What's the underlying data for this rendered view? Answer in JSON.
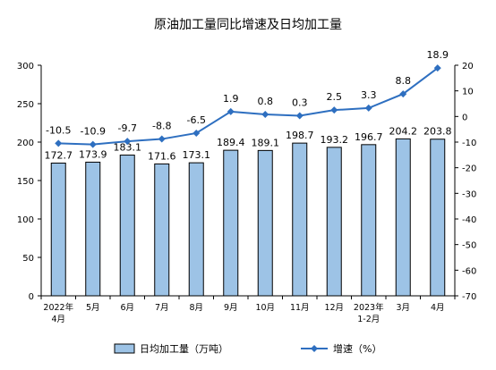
{
  "chart_data": {
    "title": "原油加工量同比增速及日均加工量",
    "categories": [
      [
        "2022年",
        "4月"
      ],
      [
        "5月"
      ],
      [
        "6月"
      ],
      [
        "7月"
      ],
      [
        "8月"
      ],
      [
        "9月"
      ],
      [
        "10月"
      ],
      [
        "11月"
      ],
      [
        "12月"
      ],
      [
        "2023年",
        "1-2月"
      ],
      [
        "3月"
      ],
      [
        "4月"
      ]
    ],
    "left_axis": {
      "min": 0,
      "max": 300,
      "ticks": [
        0,
        50,
        100,
        150,
        200,
        250,
        300
      ]
    },
    "right_axis": {
      "min": -70,
      "max": 20,
      "ticks": [
        20,
        10,
        0,
        -10,
        -20,
        -30,
        -40,
        -50,
        -60,
        -70
      ]
    },
    "series": [
      {
        "name": "日均加工量（万吨）",
        "type": "bar",
        "axis": "left",
        "color": "#9dc3e6",
        "border": "#000000",
        "values": [
          172.7,
          173.9,
          183.1,
          171.6,
          173.1,
          189.4,
          189.1,
          198.7,
          193.2,
          196.7,
          204.2,
          203.8
        ]
      },
      {
        "name": "增速（%）",
        "type": "line",
        "axis": "right",
        "color": "#2e6fc0",
        "values": [
          -10.5,
          -10.9,
          -9.7,
          -8.8,
          -6.5,
          1.9,
          0.8,
          0.3,
          2.5,
          3.3,
          8.8,
          18.9
        ]
      }
    ],
    "legend": {
      "position": "bottom"
    }
  }
}
